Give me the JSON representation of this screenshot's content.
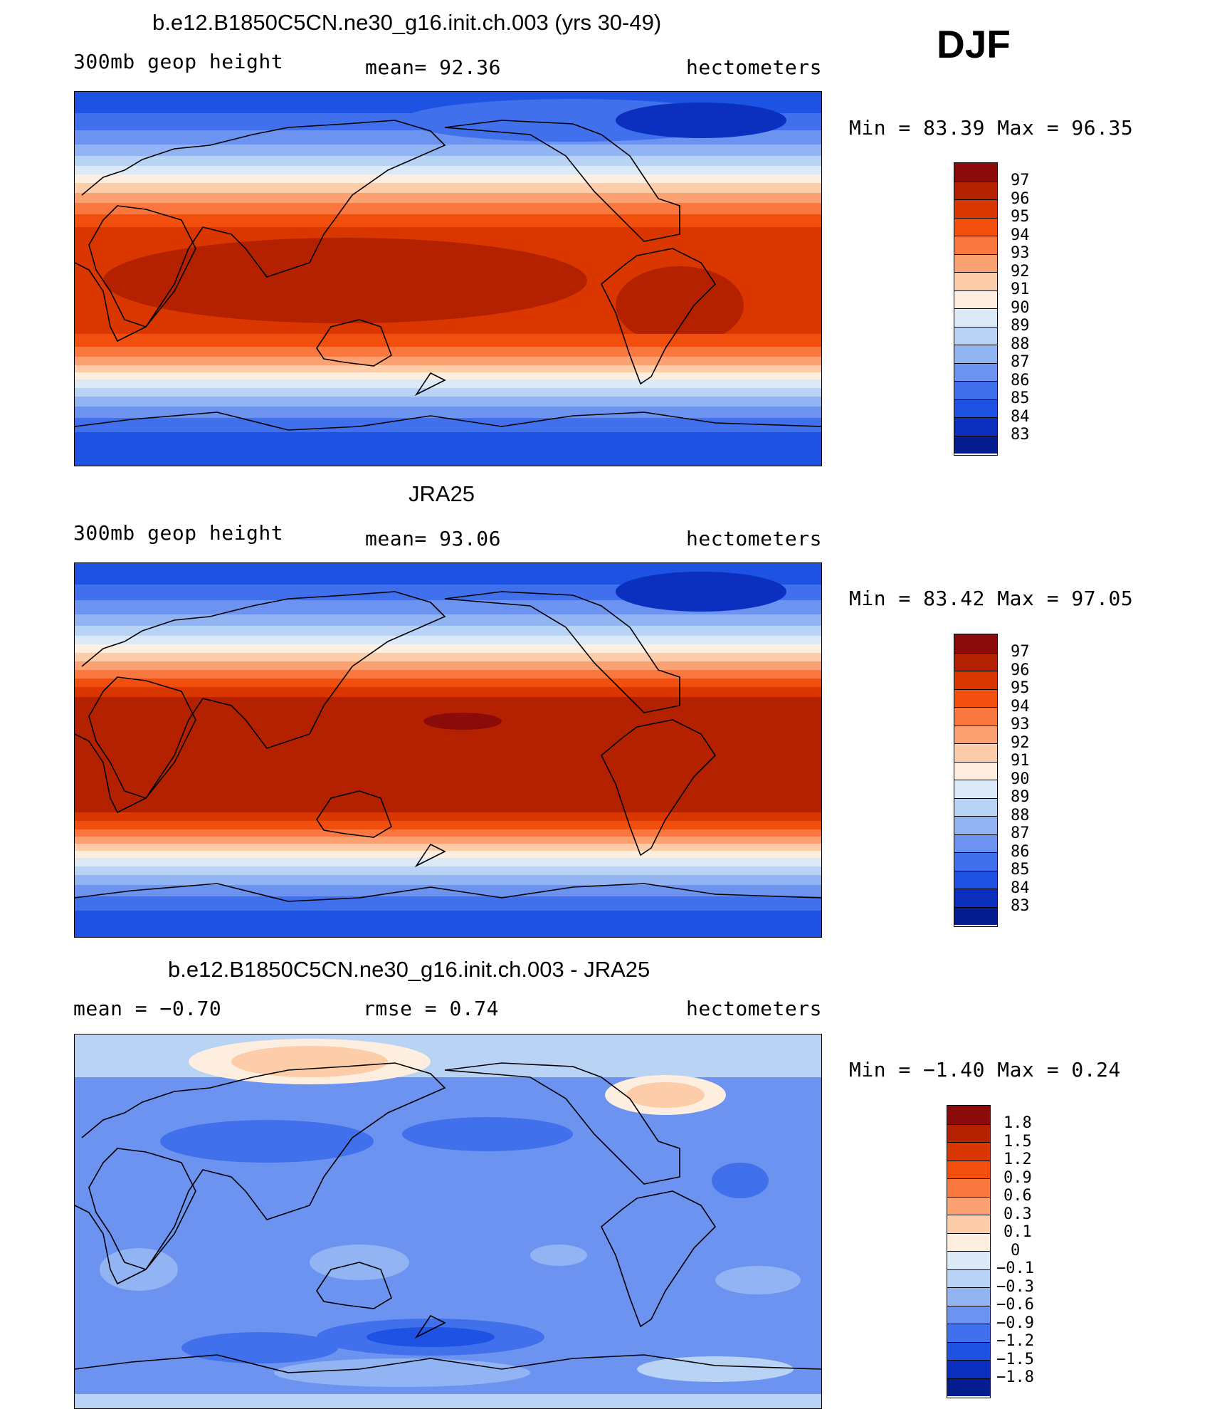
{
  "season": "DJF",
  "panels": [
    {
      "title": "b.e12.B1850C5CN.ne30_g16.init.ch.003 (yrs 30-49)",
      "left_label": "300mb geop height",
      "center_label": "mean=  92.36",
      "right_label": "hectometers",
      "minmax": "Min =  83.39 Max =  96.35",
      "levels": [
        "97",
        "96",
        "95",
        "94",
        "93",
        "92",
        "91",
        "90",
        "89",
        "88",
        "87",
        "86",
        "85",
        "84",
        "83"
      ],
      "colors": [
        "#8b0a0a",
        "#b32100",
        "#d93600",
        "#f24f0f",
        "#fa7840",
        "#fca172",
        "#fdcca8",
        "#fdeedf",
        "#dceaf8",
        "#b8d3f4",
        "#92b4f2",
        "#6b93ef",
        "#4070ec",
        "#1e52e2",
        "#0b2fbf",
        "#051c8f"
      ],
      "chart_data": {
        "type": "heatmap",
        "variable": "300mb geop height",
        "units": "hectometers",
        "mean": 92.36,
        "min": 83.39,
        "max": 96.35
      }
    },
    {
      "title": "JRA25",
      "left_label": "300mb geop height",
      "center_label": "mean=  93.06",
      "right_label": "hectometers",
      "minmax": "Min =  83.42 Max =  97.05",
      "levels": [
        "97",
        "96",
        "95",
        "94",
        "93",
        "92",
        "91",
        "90",
        "89",
        "88",
        "87",
        "86",
        "85",
        "84",
        "83"
      ],
      "colors": [
        "#8b0a0a",
        "#b32100",
        "#d93600",
        "#f24f0f",
        "#fa7840",
        "#fca172",
        "#fdcca8",
        "#fdeedf",
        "#dceaf8",
        "#b8d3f4",
        "#92b4f2",
        "#6b93ef",
        "#4070ec",
        "#1e52e2",
        "#0b2fbf",
        "#051c8f"
      ],
      "chart_data": {
        "type": "heatmap",
        "variable": "300mb geop height",
        "units": "hectometers",
        "mean": 93.06,
        "min": 83.42,
        "max": 97.05
      }
    },
    {
      "title": "b.e12.B1850C5CN.ne30_g16.init.ch.003 - JRA25",
      "left_label": "mean =   −0.70",
      "center_label": "rmse =    0.74",
      "right_label": "hectometers",
      "minmax": "Min =  −1.40 Max =    0.24",
      "levels": [
        "1.8",
        "1.5",
        "1.2",
        "0.9",
        "0.6",
        "0.3",
        "0.1",
        "0",
        "−0.1",
        "−0.3",
        "−0.6",
        "−0.9",
        "−1.2",
        "−1.5",
        "−1.8"
      ],
      "colors": [
        "#8b0a0a",
        "#b32100",
        "#d93600",
        "#f24f0f",
        "#fa7840",
        "#fca172",
        "#fdcca8",
        "#fdeedf",
        "#dceaf8",
        "#b8d3f4",
        "#92b4f2",
        "#6b93ef",
        "#4070ec",
        "#1e52e2",
        "#0b2fbf",
        "#051c8f"
      ],
      "chart_data": {
        "type": "heatmap",
        "variable": "difference",
        "units": "hectometers",
        "mean": -0.7,
        "rmse": 0.74,
        "min": -1.4,
        "max": 0.24
      }
    }
  ]
}
